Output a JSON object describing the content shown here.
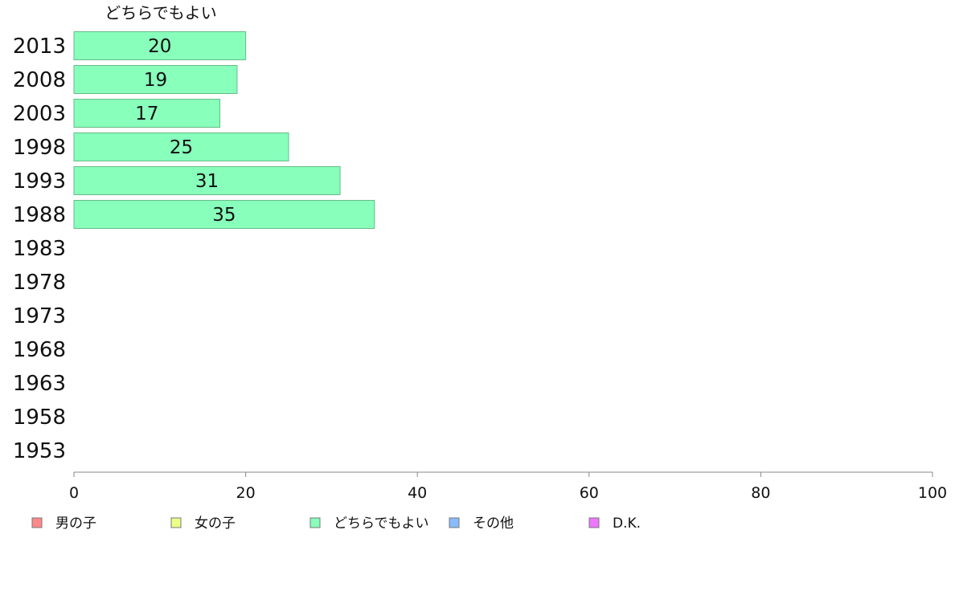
{
  "chart_data": {
    "type": "bar",
    "orientation": "horizontal",
    "series_title": "どちらでもよい",
    "categories": [
      "2013",
      "2008",
      "2003",
      "1998",
      "1993",
      "1988",
      "1983",
      "1978",
      "1973",
      "1968",
      "1963",
      "1958",
      "1953"
    ],
    "series": [
      {
        "name": "どちらでもよい",
        "color": "#88ffbb",
        "values": [
          20,
          19,
          17,
          25,
          31,
          35,
          null,
          null,
          null,
          null,
          null,
          null,
          null
        ]
      }
    ],
    "xlim": [
      0,
      100
    ],
    "xticks": [
      0,
      20,
      40,
      60,
      80,
      100
    ],
    "grid": false,
    "legend_position": "bottom",
    "legend": [
      {
        "label": "男の子",
        "color": "#ff8888"
      },
      {
        "label": "女の子",
        "color": "#eeff88"
      },
      {
        "label": "どちらでもよい",
        "color": "#88ffbb"
      },
      {
        "label": "その他",
        "color": "#88bbff"
      },
      {
        "label": "D.K.",
        "color": "#ee77ff"
      }
    ]
  }
}
